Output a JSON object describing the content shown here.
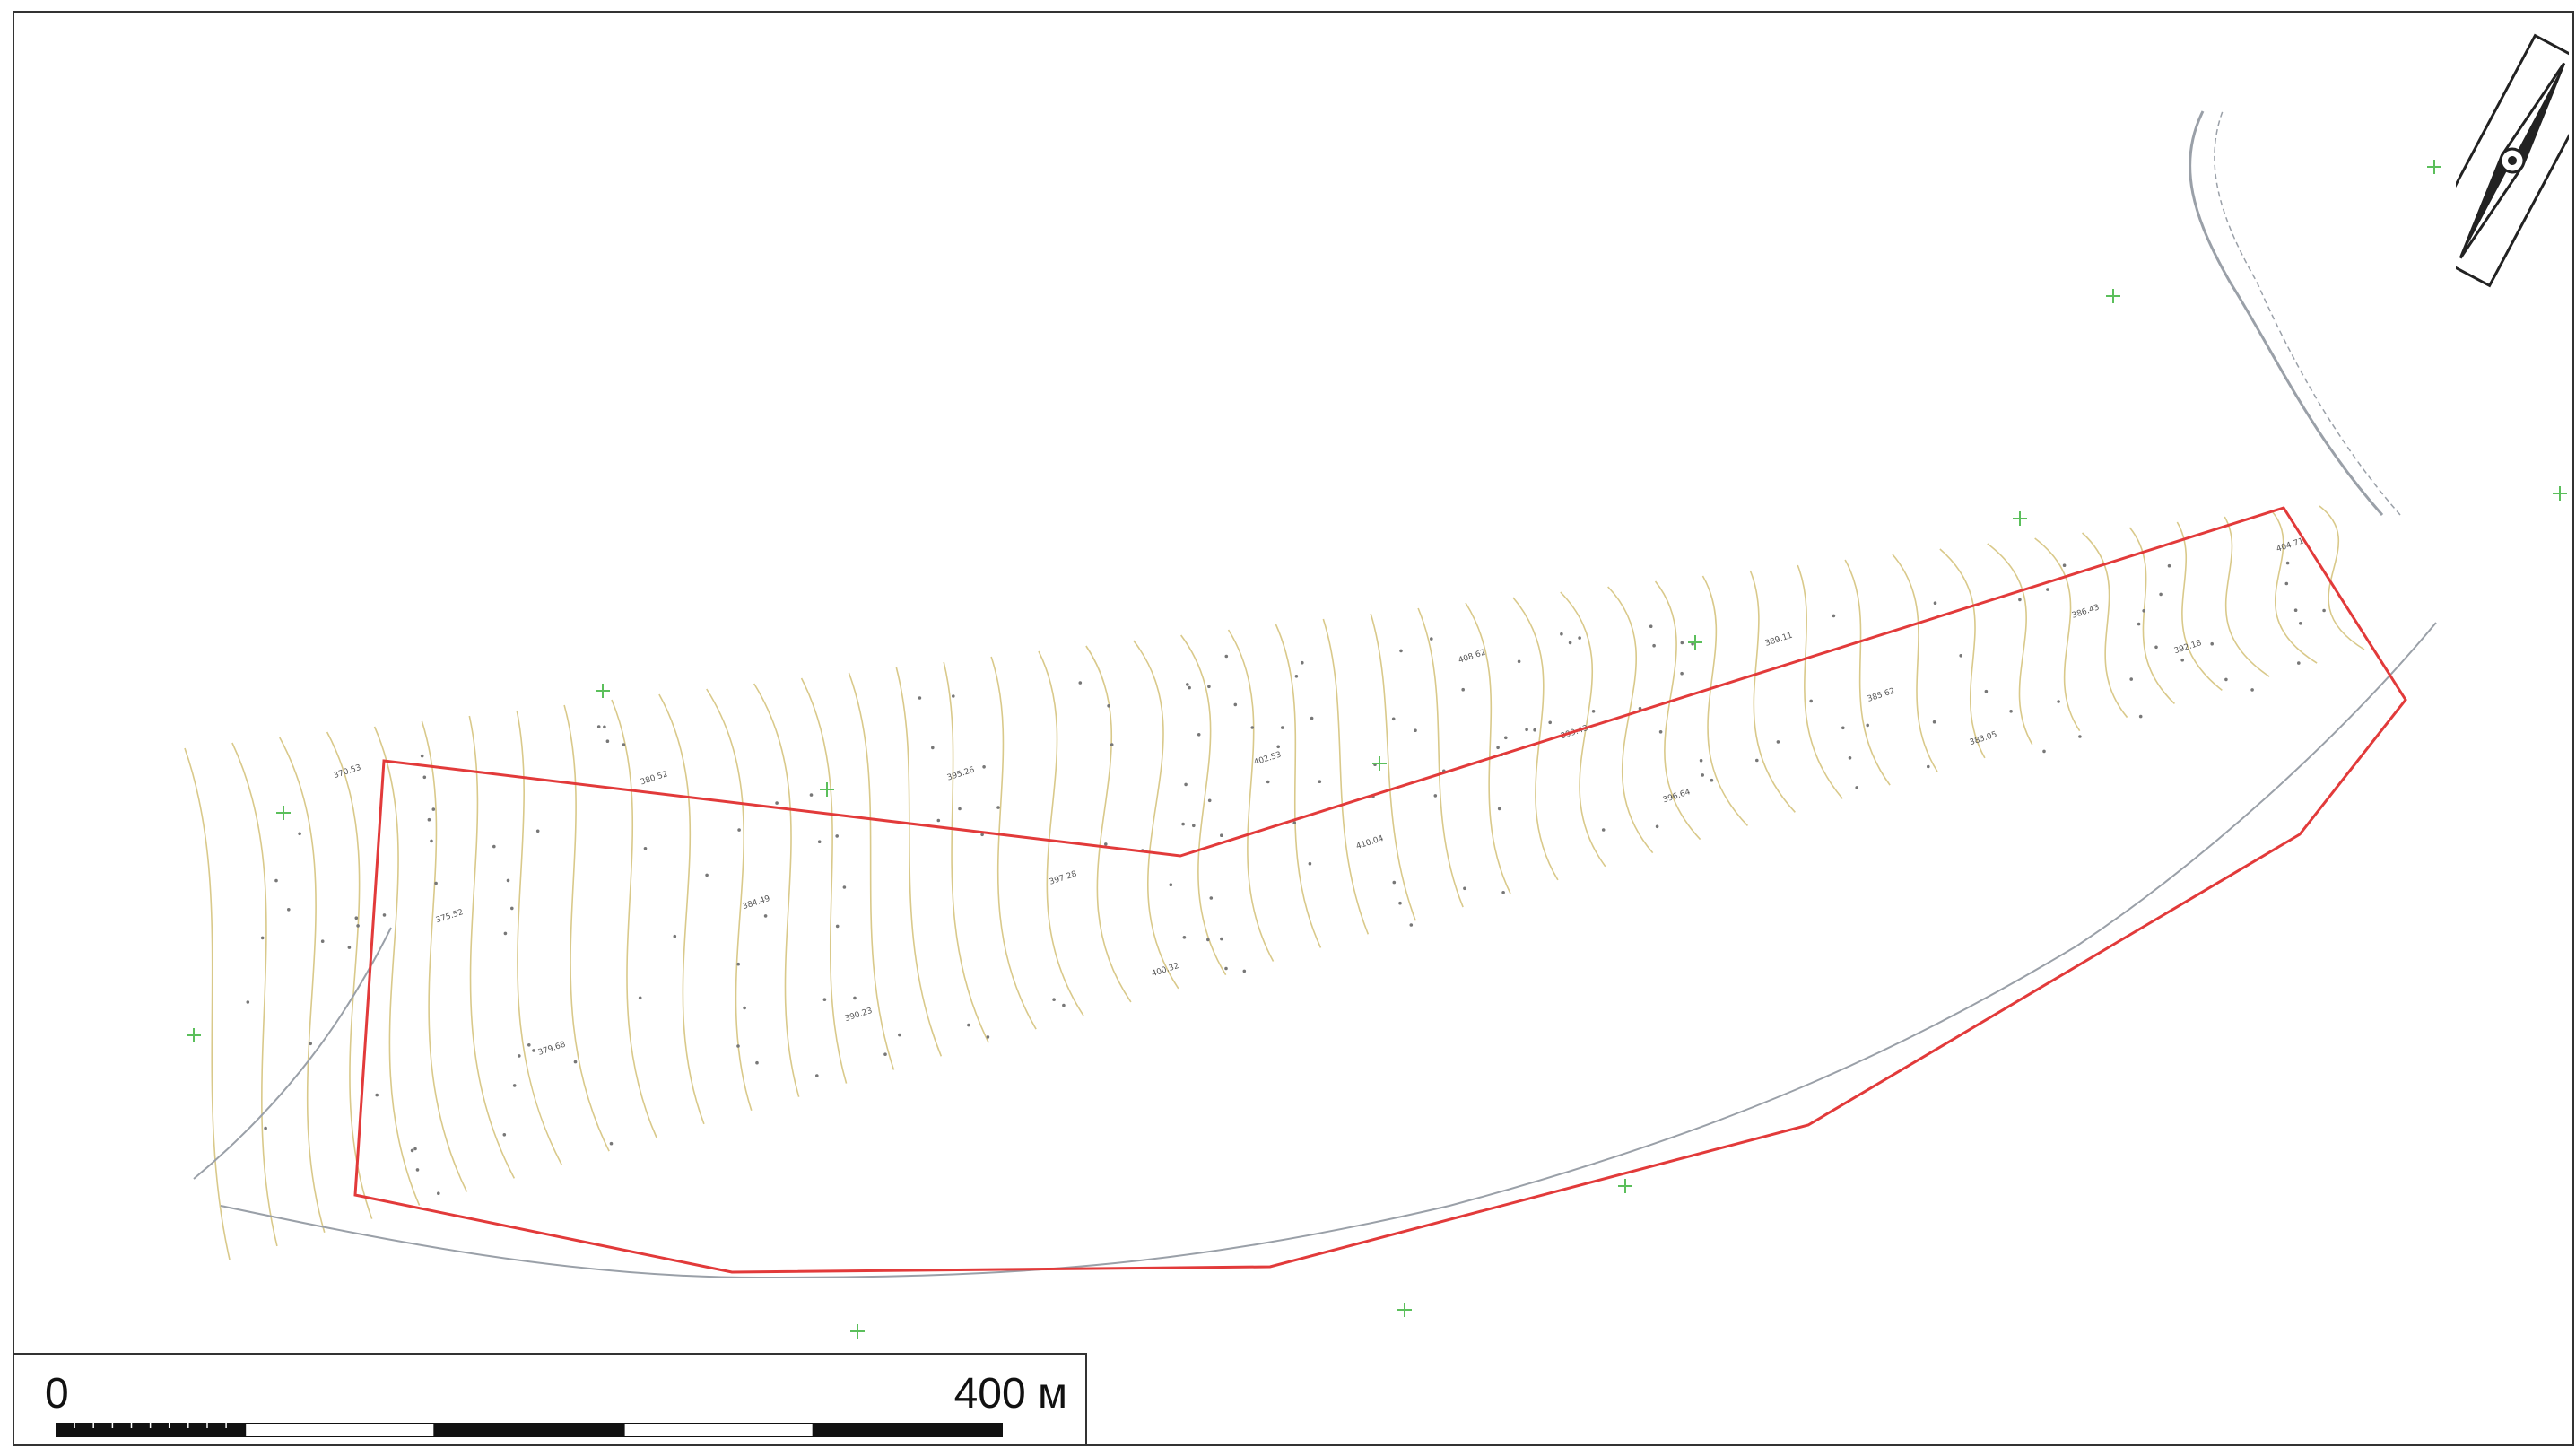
{
  "map": {
    "scale_start": "0",
    "scale_end": "400 м",
    "scale_segments": 5,
    "colors": {
      "contour": "#d9c98a",
      "boundary": "#e23a3a",
      "road": "#9aa0a8",
      "frame": "#333333",
      "marker": "#5bbf5b",
      "point": "#5a5ad6"
    },
    "icons": {
      "north_arrow": "north-arrow-icon"
    },
    "elevation_labels": [
      "370.53",
      "375.52",
      "379.68",
      "380.52",
      "384.49",
      "390.23",
      "395.26",
      "397.28",
      "400.32",
      "402.53",
      "410.04",
      "408.62",
      "399.43",
      "396.64",
      "389.11",
      "385.62",
      "383.05",
      "386.43",
      "392.18",
      "404.71"
    ]
  }
}
